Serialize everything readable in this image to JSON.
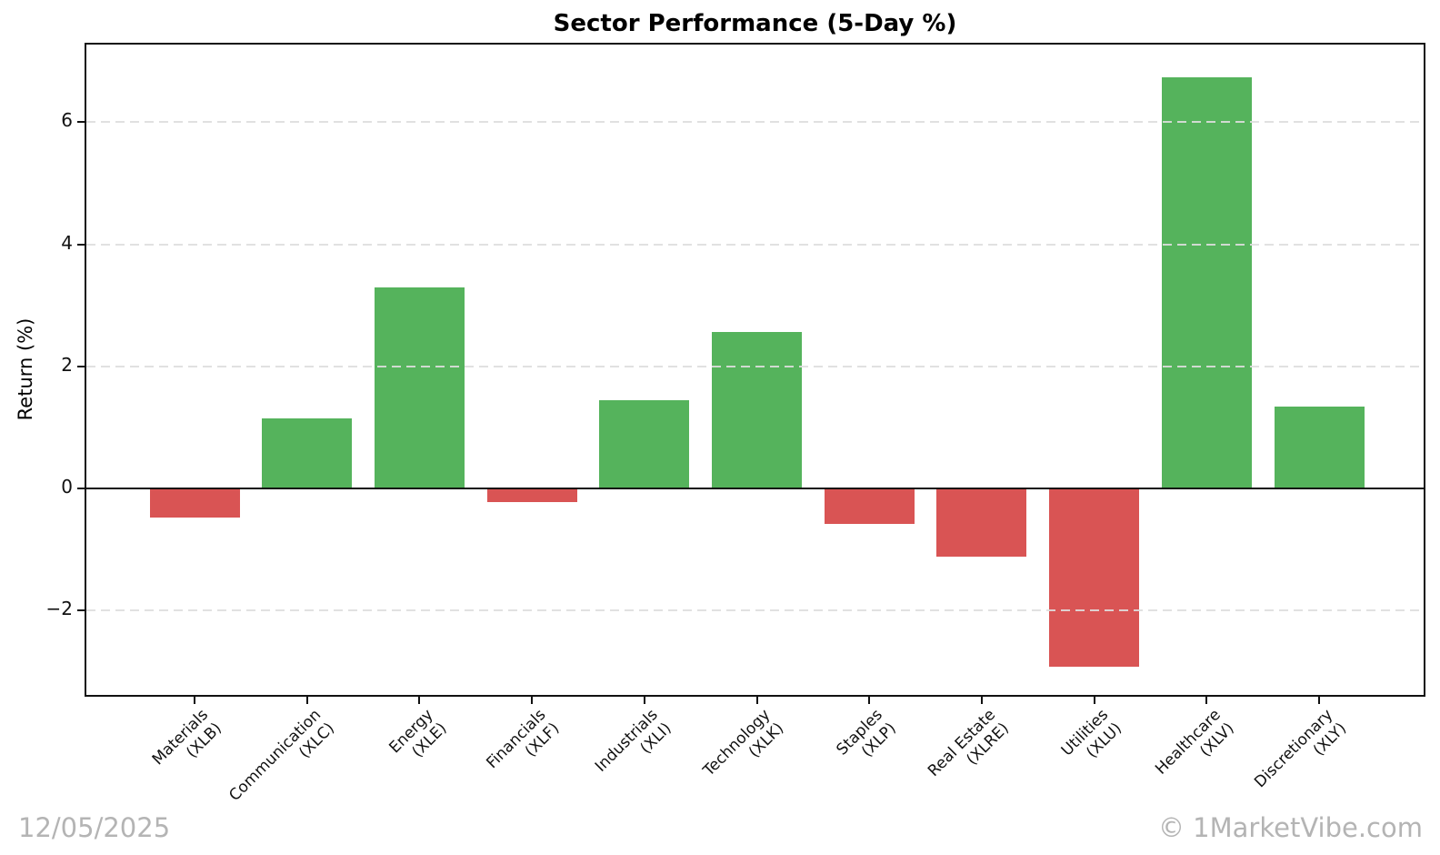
{
  "footer": {
    "date": "12/05/2025",
    "copyright": "© 1MarketVibe.com"
  },
  "chart_data": {
    "type": "bar",
    "title": "Sector Performance (5-Day %)",
    "xlabel": "",
    "ylabel": "Return (%)",
    "categories": [
      {
        "name": "Materials",
        "ticker": "(XLB)"
      },
      {
        "name": "Communication",
        "ticker": "(XLC)"
      },
      {
        "name": "Energy",
        "ticker": "(XLE)"
      },
      {
        "name": "Financials",
        "ticker": "(XLF)"
      },
      {
        "name": "Industrials",
        "ticker": "(XLI)"
      },
      {
        "name": "Technology",
        "ticker": "(XLK)"
      },
      {
        "name": "Staples",
        "ticker": "(XLP)"
      },
      {
        "name": "Real Estate",
        "ticker": "(XLRE)"
      },
      {
        "name": "Utilities",
        "ticker": "(XLU)"
      },
      {
        "name": "Healthcare",
        "ticker": "(XLV)"
      },
      {
        "name": "Discretionary",
        "ticker": "(XLY)"
      }
    ],
    "values": [
      -0.47,
      1.15,
      3.29,
      -0.22,
      1.44,
      2.56,
      -0.58,
      -1.12,
      -2.92,
      6.73,
      1.34
    ],
    "yticks": [
      -2,
      0,
      2,
      4,
      6
    ],
    "ylim": [
      -3.38,
      7.27
    ],
    "grid": "horizontal dashed, drawn above bars",
    "legend": "none",
    "zero_line": true,
    "colors": {
      "positive": "#55b35c",
      "negative": "#d95454",
      "grid": "#dedede",
      "axis": "#111111",
      "watermark": "#b4b4b4"
    }
  }
}
